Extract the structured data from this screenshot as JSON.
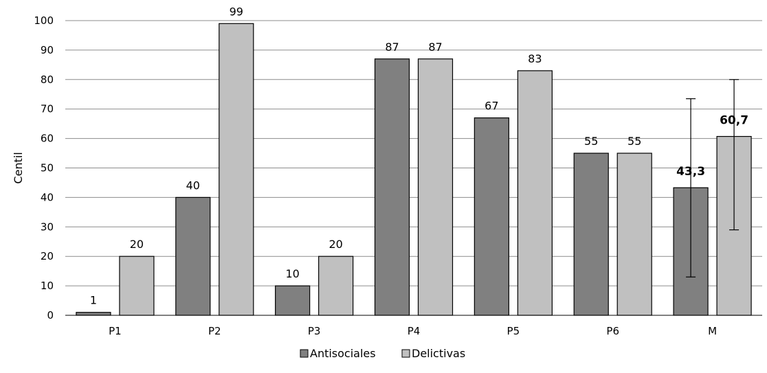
{
  "chart_data": {
    "type": "bar",
    "categories": [
      "P1",
      "P2",
      "P3",
      "P4",
      "P5",
      "P6",
      "M"
    ],
    "series": [
      {
        "name": "Antisociales",
        "color": "#808080",
        "values": [
          1,
          40,
          10,
          87,
          67,
          55,
          43.3
        ],
        "labels": [
          "1",
          "40",
          "10",
          "87",
          "67",
          "55",
          "43,3"
        ]
      },
      {
        "name": "Delictivas",
        "color": "#c0c0c0",
        "values": [
          20,
          99,
          20,
          87,
          83,
          55,
          60.7
        ],
        "labels": [
          "20",
          "99",
          "20",
          "87",
          "83",
          "55",
          "60,7"
        ]
      }
    ],
    "error_bars": {
      "category": "M",
      "Antisociales": [
        13,
        73.5
      ],
      "Delictivas": [
        29,
        80
      ]
    },
    "title": "",
    "xlabel": "",
    "ylabel": "Centil",
    "ylim": [
      0,
      100
    ],
    "yticks": [
      0,
      10,
      20,
      30,
      40,
      50,
      60,
      70,
      80,
      90,
      100
    ],
    "grid": true,
    "legend_position": "bottom"
  }
}
